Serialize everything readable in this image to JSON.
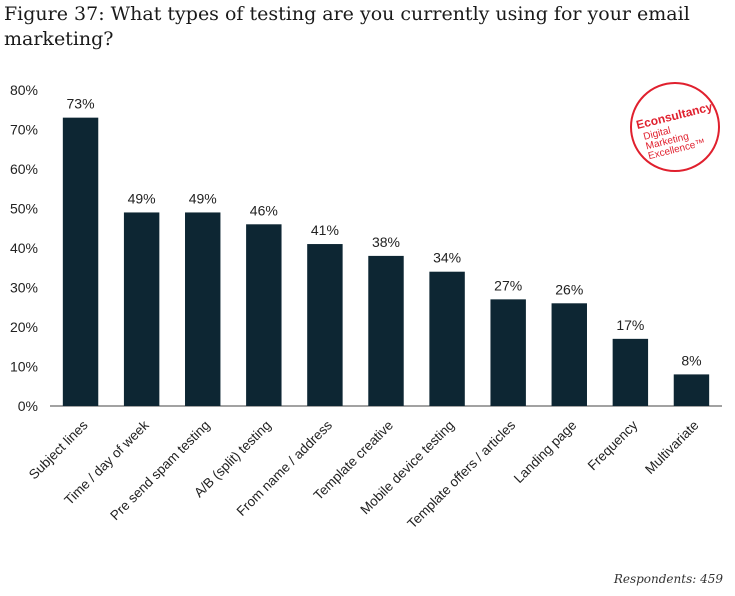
{
  "figure": {
    "title": "Figure 37: What types of testing are you currently using for your email marketing?",
    "footnote": "Respondents: 459"
  },
  "logo": {
    "line1": "Econsultancy",
    "line2": "Digital",
    "line3": "Marketing",
    "line4": "Excellence™",
    "color": "#e0202e"
  },
  "chart_data": {
    "type": "bar",
    "title": "Figure 37: What types of testing are you currently using for your email marketing?",
    "categories": [
      "Subject lines",
      "Time / day of week",
      "Pre send spam testing",
      "A/B (split) testing",
      "From name / address",
      "Template creative",
      "Mobile device testing",
      "Template offers / articles",
      "Landing page",
      "Frequency",
      "Multivariate"
    ],
    "values": [
      73,
      49,
      49,
      46,
      41,
      38,
      34,
      27,
      26,
      17,
      8
    ],
    "data_labels": [
      "73%",
      "49%",
      "49%",
      "46%",
      "41%",
      "38%",
      "34%",
      "27%",
      "26%",
      "17%",
      "8%"
    ],
    "ylim": [
      0,
      80
    ],
    "yticks": [
      "0%",
      "10%",
      "20%",
      "30%",
      "40%",
      "50%",
      "60%",
      "70%",
      "80%"
    ],
    "xlabel": "",
    "ylabel": "",
    "bar_color": "#0d2633",
    "grid": false
  }
}
